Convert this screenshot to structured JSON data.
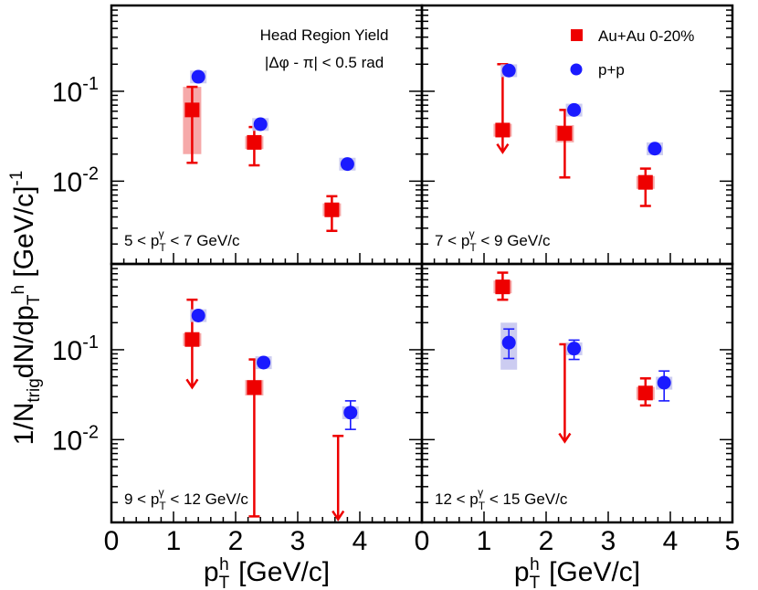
{
  "chart_data": {
    "type": "scatter",
    "y_axis_title": "1/N_trig dN/dp_T^h [GeV/c]^-1",
    "x_axis_title": "p_T^h [GeV/c]",
    "x_ticks": [
      "0",
      "1",
      "2",
      "3",
      "4",
      "5"
    ],
    "y_tick_labels": {
      "decade_minus1": "10^-1",
      "decade_minus2": "10^-2"
    },
    "yscale": "log",
    "ylim": [
      0.0012,
      0.9
    ],
    "xlim": [
      0,
      5
    ],
    "legend": {
      "position": "top-right",
      "entries": [
        {
          "name": "Au+Au 0-20%",
          "marker": "square",
          "color": "#ee0000"
        },
        {
          "name": "p+p",
          "marker": "circle",
          "color": "#1a1aff"
        }
      ]
    },
    "annotation": {
      "title": "Head Region Yield",
      "cut": "|Δφ - π| < 0.5 rad"
    },
    "panels": [
      {
        "id": "p5-7",
        "range_label": {
          "lo": "5 <",
          "hi": "< 7 GeV/c"
        },
        "series": [
          {
            "name": "Au+Au 0-20%",
            "points": [
              {
                "x": 1.3,
                "y": 0.062,
                "elo": 0.016,
                "ehi": 0.112,
                "slo": 0.02,
                "shi": 0.112,
                "ul": false
              },
              {
                "x": 2.3,
                "y": 0.027,
                "elo": 0.015,
                "ehi": 0.04,
                "slo": 0.024,
                "shi": 0.03,
                "ul": false
              },
              {
                "x": 3.55,
                "y": 0.0048,
                "elo": 0.0028,
                "ehi": 0.0068,
                "slo": 0.0042,
                "shi": 0.0055,
                "ul": false
              }
            ]
          },
          {
            "name": "p+p",
            "points": [
              {
                "x": 1.4,
                "y": 0.145,
                "elo": 0.14,
                "ehi": 0.15,
                "slo": 0.13,
                "shi": 0.16
              },
              {
                "x": 2.4,
                "y": 0.043,
                "elo": 0.041,
                "ehi": 0.045,
                "slo": 0.038,
                "shi": 0.048
              },
              {
                "x": 3.8,
                "y": 0.0155,
                "elo": 0.015,
                "ehi": 0.016,
                "slo": 0.0143,
                "shi": 0.0167
              }
            ]
          }
        ]
      },
      {
        "id": "p7-9",
        "range_label": {
          "lo": "7 <",
          "hi": "< 9 GeV/c"
        },
        "series": [
          {
            "name": "Au+Au 0-20%",
            "points": [
              {
                "x": 1.3,
                "y": 0.037,
                "elo": 0.021,
                "ehi": 0.2,
                "slo": 0.034,
                "shi": 0.04,
                "ul": true
              },
              {
                "x": 2.3,
                "y": 0.034,
                "elo": 0.011,
                "ehi": 0.062,
                "slo": 0.027,
                "shi": 0.042,
                "ul": false
              },
              {
                "x": 3.6,
                "y": 0.0097,
                "elo": 0.0053,
                "ehi": 0.0138,
                "slo": 0.0085,
                "shi": 0.011,
                "ul": false
              }
            ]
          },
          {
            "name": "p+p",
            "points": [
              {
                "x": 1.4,
                "y": 0.17,
                "elo": 0.165,
                "ehi": 0.175,
                "slo": 0.155,
                "shi": 0.185
              },
              {
                "x": 2.45,
                "y": 0.062,
                "elo": 0.06,
                "ehi": 0.064,
                "slo": 0.056,
                "shi": 0.068
              },
              {
                "x": 3.75,
                "y": 0.023,
                "elo": 0.022,
                "ehi": 0.024,
                "slo": 0.021,
                "shi": 0.025
              }
            ]
          }
        ]
      },
      {
        "id": "p9-12",
        "range_label": {
          "lo": "9 <",
          "hi": "< 12 GeV/c"
        },
        "series": [
          {
            "name": "Au+Au 0-20%",
            "points": [
              {
                "x": 1.3,
                "y": 0.13,
                "elo": 0.038,
                "ehi": 0.36,
                "slo": 0.12,
                "shi": 0.14,
                "ul": true
              },
              {
                "x": 2.3,
                "y": 0.038,
                "elo": 0.0014,
                "ehi": 0.078,
                "slo": 0.031,
                "shi": 0.046,
                "ul": false
              },
              {
                "x": 3.65,
                "y": 0.011,
                "elo": 0.0013,
                "ehi": 0.011,
                "slo": 0.011,
                "shi": 0.011,
                "ul": true,
                "nomarker": true
              }
            ]
          },
          {
            "name": "p+p",
            "points": [
              {
                "x": 1.4,
                "y": 0.24,
                "elo": 0.235,
                "ehi": 0.245,
                "slo": 0.225,
                "shi": 0.255
              },
              {
                "x": 2.45,
                "y": 0.072,
                "elo": 0.065,
                "ehi": 0.079,
                "slo": 0.066,
                "shi": 0.078
              },
              {
                "x": 3.85,
                "y": 0.02,
                "elo": 0.013,
                "ehi": 0.027,
                "slo": 0.018,
                "shi": 0.022
              }
            ]
          }
        ]
      },
      {
        "id": "p12-15",
        "range_label": {
          "lo": "12 <",
          "hi": "< 15 GeV/c"
        },
        "series": [
          {
            "name": "Au+Au 0-20%",
            "points": [
              {
                "x": 1.3,
                "y": 0.5,
                "elo": 0.36,
                "ehi": 0.72,
                "slo": 0.43,
                "shi": 0.58,
                "ul": false
              },
              {
                "x": 2.3,
                "y": 0.115,
                "elo": 0.0095,
                "ehi": 0.115,
                "slo": 0.115,
                "shi": 0.115,
                "ul": true,
                "nomarker": true
              },
              {
                "x": 3.6,
                "y": 0.033,
                "elo": 0.024,
                "ehi": 0.048,
                "slo": 0.029,
                "shi": 0.037,
                "ul": false
              }
            ]
          },
          {
            "name": "p+p",
            "points": [
              {
                "x": 1.4,
                "y": 0.12,
                "elo": 0.08,
                "ehi": 0.17,
                "slo": 0.06,
                "shi": 0.2
              },
              {
                "x": 2.45,
                "y": 0.103,
                "elo": 0.078,
                "ehi": 0.128,
                "slo": 0.092,
                "shi": 0.114
              },
              {
                "x": 3.9,
                "y": 0.043,
                "elo": 0.027,
                "ehi": 0.058,
                "slo": 0.036,
                "shi": 0.05
              }
            ]
          }
        ]
      }
    ]
  }
}
